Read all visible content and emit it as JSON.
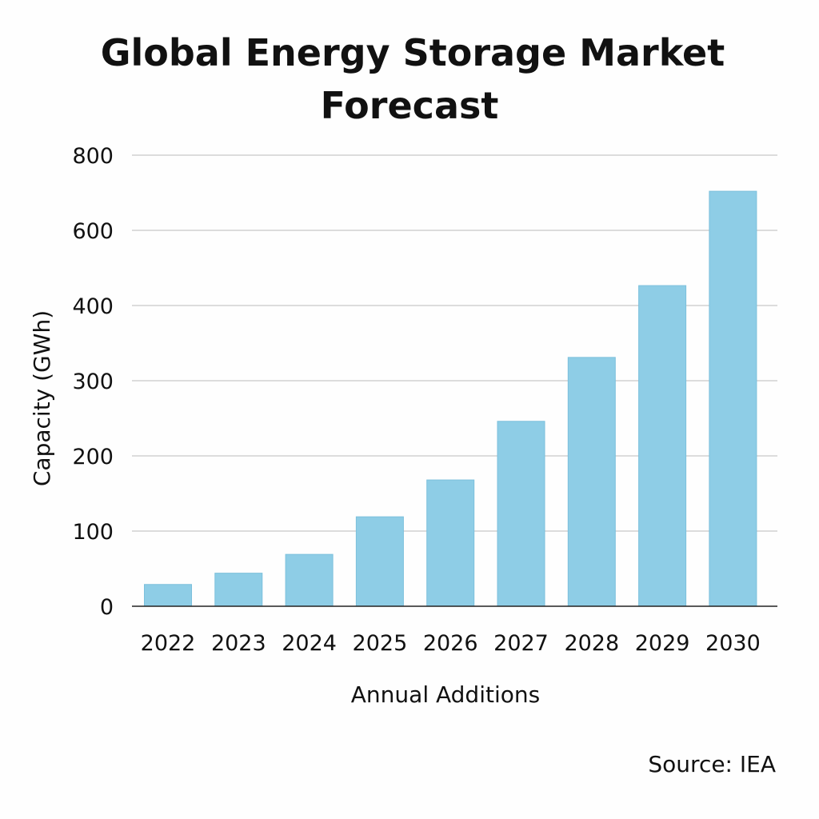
{
  "chart_data": {
    "type": "bar",
    "title_lines": [
      "Global Energy Storage Market",
      "Forecast"
    ],
    "xlabel": "Annual Additions",
    "ylabel": "Capacity (GWh)",
    "source": "Source: IEA",
    "categories": [
      "2022",
      "2023",
      "2024",
      "2025",
      "2026",
      "2027",
      "2028",
      "2029",
      "2030"
    ],
    "values": [
      29,
      44,
      69,
      119,
      168,
      246,
      331,
      453,
      704
    ],
    "y_ticks": [
      0,
      100,
      200,
      300,
      400,
      600,
      800
    ],
    "ylim": [
      0,
      800
    ],
    "grid": true,
    "legend": "none",
    "colors": {
      "bar": "#8ecde6",
      "bar_edge": "#7cc0dc",
      "grid": "#c8c8c8",
      "axis": "#222222"
    }
  }
}
